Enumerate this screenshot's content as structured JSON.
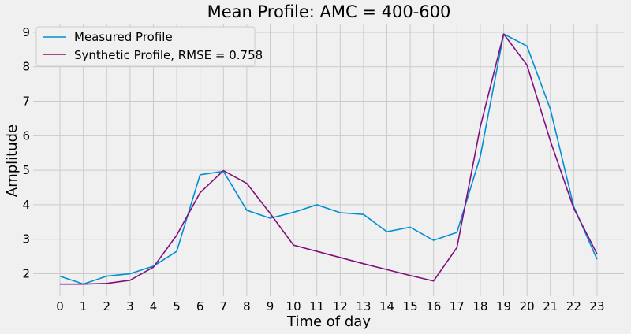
{
  "chart_data": {
    "type": "line",
    "title": "Mean Profile: AMC = 400-600",
    "xlabel": "Time of day",
    "ylabel": "Amplitude",
    "x": [
      0,
      1,
      2,
      3,
      4,
      5,
      6,
      7,
      8,
      9,
      10,
      11,
      12,
      13,
      14,
      15,
      16,
      17,
      18,
      19,
      20,
      21,
      22,
      23
    ],
    "xticks": [
      "0",
      "1",
      "2",
      "3",
      "4",
      "5",
      "6",
      "7",
      "8",
      "9",
      "10",
      "11",
      "12",
      "13",
      "14",
      "15",
      "16",
      "17",
      "18",
      "19",
      "20",
      "21",
      "22",
      "23"
    ],
    "yticks": [
      "2",
      "3",
      "4",
      "5",
      "6",
      "7",
      "8",
      "9"
    ],
    "xlim": [
      -1.15,
      24.15
    ],
    "ylim": [
      1.35,
      9.25
    ],
    "grid": true,
    "legend_position": "top-left",
    "series": [
      {
        "name": "Measured Profile",
        "color": "#008fd5",
        "values": [
          1.93,
          1.7,
          1.93,
          2.0,
          2.22,
          2.65,
          4.87,
          4.97,
          3.84,
          3.61,
          3.78,
          4.0,
          3.77,
          3.72,
          3.22,
          3.35,
          2.97,
          3.2,
          5.4,
          8.95,
          8.6,
          6.77,
          3.95,
          2.42
        ]
      },
      {
        "name": "Synthetic Profile, RMSE = 0.758",
        "color": "#810f7c",
        "values": [
          1.7,
          1.7,
          1.72,
          1.81,
          2.19,
          3.12,
          4.35,
          4.99,
          4.62,
          3.75,
          2.83,
          2.65,
          2.47,
          2.29,
          2.12,
          1.95,
          1.79,
          2.76,
          6.26,
          8.95,
          8.05,
          5.85,
          3.9,
          2.57
        ]
      }
    ]
  }
}
